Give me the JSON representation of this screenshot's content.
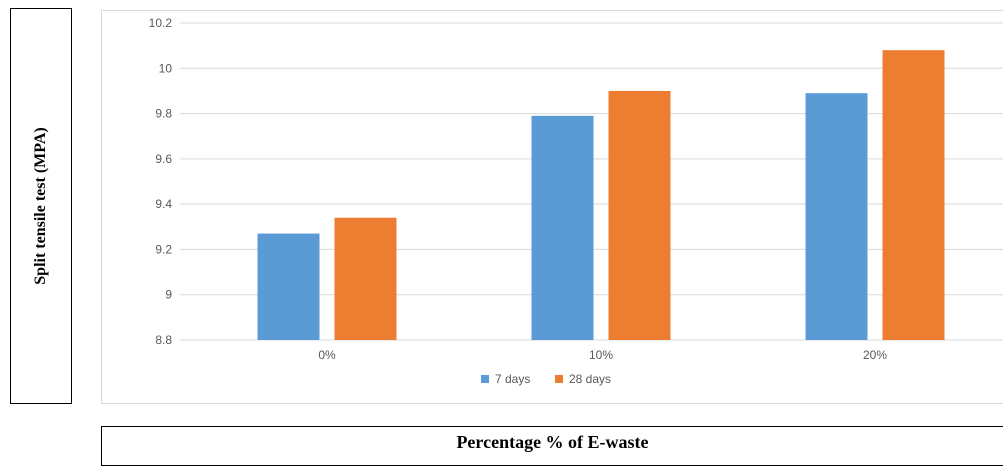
{
  "chart_data": {
    "type": "bar",
    "categories": [
      "0%",
      "10%",
      "20%"
    ],
    "series": [
      {
        "name": "7 days",
        "color": "#5b9bd5",
        "values": [
          9.27,
          9.79,
          9.89
        ]
      },
      {
        "name": "28 days",
        "color": "#ed7d31",
        "values": [
          9.34,
          9.9,
          10.08
        ]
      }
    ],
    "ylabel": "Split tensile test (MPA)",
    "xlabel": "Percentage % of E-waste",
    "ylim": [
      8.8,
      10.2
    ],
    "yticks": [
      "8.8",
      "9",
      "9.2",
      "9.4",
      "9.6",
      "9.8",
      "10",
      "10.2"
    ],
    "grid": true,
    "legend_position": "bottom"
  }
}
